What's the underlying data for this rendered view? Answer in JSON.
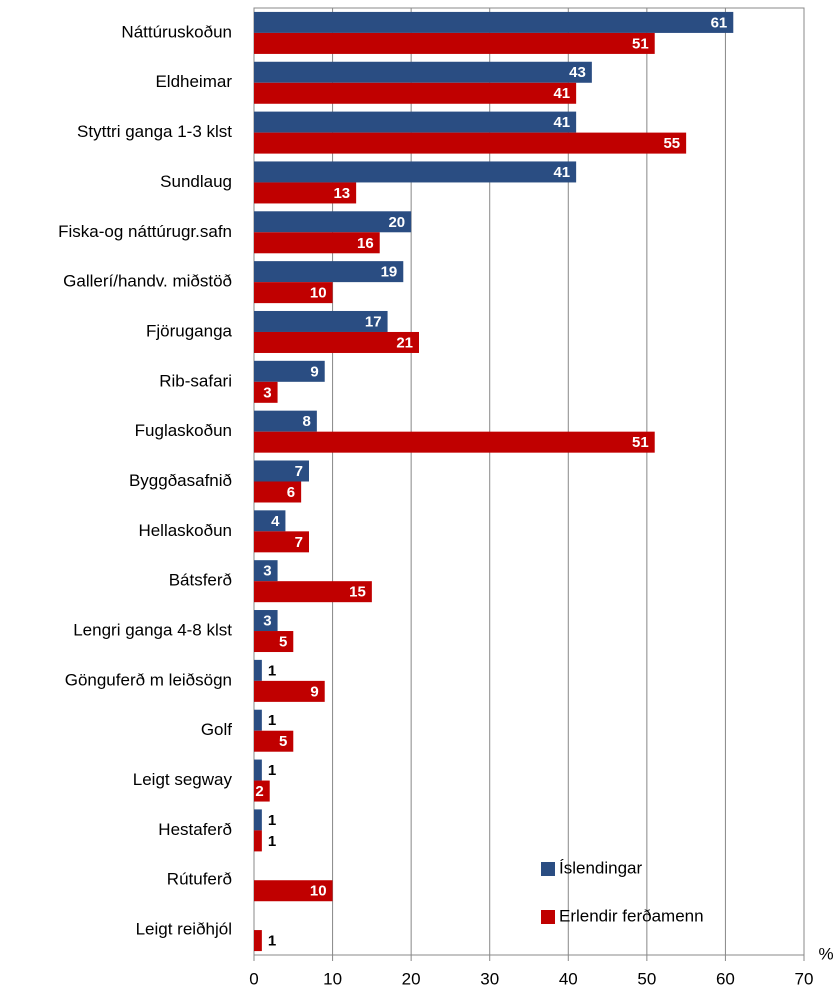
{
  "chart_data": {
    "type": "bar",
    "orientation": "horizontal",
    "categories": [
      "Náttúruskoðun",
      "Eldheimar",
      "Styttri ganga 1-3 klst",
      "Sundlaug",
      "Fiska-og náttúrugr.safn",
      "Gallerí/handv. miðstöð",
      "Fjöruganga",
      "Rib-safari",
      "Fuglaskoðun",
      "Byggðasafnið",
      "Hellaskoðun",
      "Bátsferð",
      "Lengri ganga 4-8 klst",
      "Gönguferð m leiðsögn",
      "Golf",
      "Leigt segway",
      "Hestaferð",
      "Rútuferð",
      "Leigt reiðhjól"
    ],
    "series": [
      {
        "name": "Íslendingar",
        "color": "#2a4d82",
        "values": [
          61,
          43,
          41,
          41,
          20,
          19,
          17,
          9,
          8,
          7,
          4,
          3,
          3,
          1,
          1,
          1,
          1,
          null,
          null
        ]
      },
      {
        "name": "Erlendir ferðamenn",
        "color": "#c00000",
        "values": [
          51,
          41,
          55,
          13,
          16,
          10,
          21,
          3,
          51,
          6,
          7,
          15,
          5,
          9,
          5,
          2,
          1,
          10,
          1
        ]
      }
    ],
    "xlim": [
      0,
      70
    ],
    "xticks": [
      0,
      10,
      20,
      30,
      40,
      50,
      60,
      70
    ],
    "xlabel": "%",
    "grid": true,
    "legend": "lower right"
  }
}
